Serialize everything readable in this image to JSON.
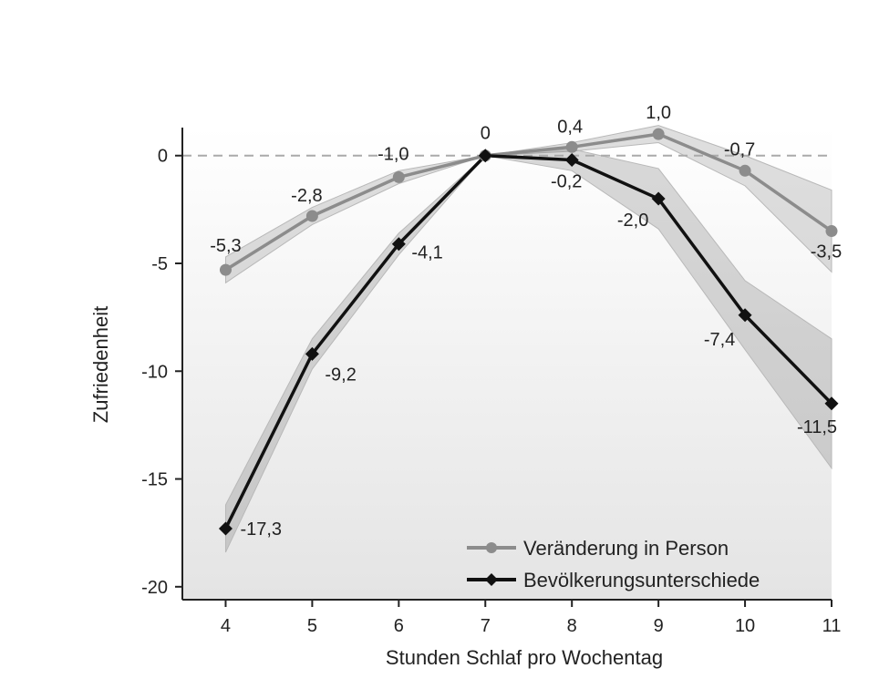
{
  "chart_data": {
    "type": "line",
    "xlabel": "Stunden Schlaf pro Wochentag",
    "ylabel": "Zufriedenheit",
    "x": [
      4,
      5,
      6,
      7,
      8,
      9,
      10,
      11
    ],
    "xlim": [
      3.5,
      11
    ],
    "ylim": [
      -20.6,
      1.3
    ],
    "yticks": [
      0,
      -5,
      -10,
      -15,
      -20
    ],
    "ytick_labels": [
      "0",
      "-5",
      "-10",
      "-15",
      "-20"
    ],
    "reference_line": {
      "y": 0,
      "style": "dashed"
    },
    "legend_position": "bottom-right",
    "series": [
      {
        "name": "Veränderung in Person",
        "marker": "circle",
        "color": "#8c8c8c",
        "values": [
          -5.3,
          -2.8,
          -1.0,
          0,
          0.4,
          1.0,
          -0.7,
          -3.5
        ],
        "labels": [
          "-5,3",
          "-2,8",
          "-1,0",
          "0",
          "0,4",
          "1,0",
          "-0,7",
          "-3,5"
        ],
        "ci_lower": [
          -5.9,
          -3.2,
          -1.3,
          0,
          0.2,
          0.6,
          -1.4,
          -5.4
        ],
        "ci_upper": [
          -4.7,
          -2.4,
          -0.7,
          0,
          0.6,
          1.4,
          0.0,
          -1.6
        ]
      },
      {
        "name": "Bevölkerungsunterschiede",
        "marker": "diamond",
        "color": "#111111",
        "values": [
          -17.3,
          -9.2,
          -4.1,
          0,
          -0.2,
          -2.0,
          -7.4,
          -11.5
        ],
        "labels": [
          "-17,3",
          "-9,2",
          "-4,1",
          "",
          "-0,2",
          "-2,0",
          "-7,4",
          "-11,5"
        ],
        "ci_lower": [
          -18.4,
          -9.9,
          -4.6,
          0,
          -0.7,
          -3.4,
          -9.0,
          -14.5
        ],
        "ci_upper": [
          -16.2,
          -8.5,
          -3.6,
          0,
          0.3,
          -0.6,
          -5.8,
          -8.5
        ]
      }
    ]
  }
}
